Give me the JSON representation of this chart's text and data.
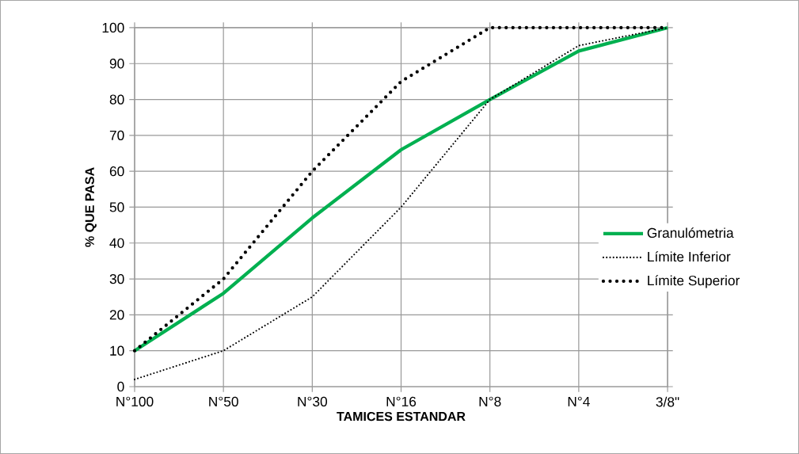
{
  "chart_data": {
    "type": "line",
    "xlabel": "TAMICES ESTANDAR",
    "ylabel": "% QUE PASA",
    "categories": [
      "N°100",
      "N°50",
      "N°30",
      "N°16",
      "N°8",
      "N°4",
      "3/8\""
    ],
    "series": [
      {
        "name": "Granulómetria",
        "color": "#00b050",
        "line_style": "solid",
        "values": [
          10,
          26,
          47,
          66,
          80,
          93.5,
          100
        ]
      },
      {
        "name": "Límite Inferior",
        "color": "#000000",
        "line_style": "dotted",
        "values": [
          2,
          10,
          25,
          50,
          80,
          95,
          100
        ]
      },
      {
        "name": "Límite Superior",
        "color": "#000000",
        "line_style": "dotted",
        "values": [
          10,
          30,
          60,
          85,
          100,
          100,
          100
        ]
      }
    ],
    "ylim": [
      0,
      100
    ],
    "yticks": [
      0,
      10,
      20,
      30,
      40,
      50,
      60,
      70,
      80,
      90,
      100
    ],
    "grid": true,
    "legend": "right",
    "marker": "none"
  }
}
